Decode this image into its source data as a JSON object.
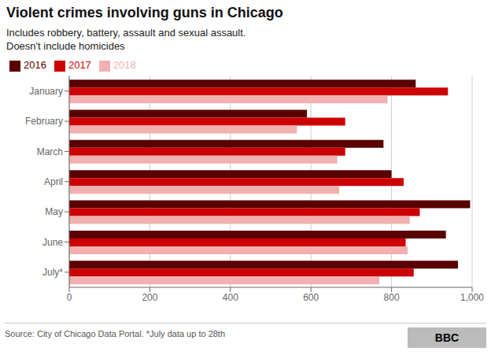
{
  "chart_data": {
    "type": "bar",
    "orientation": "horizontal",
    "title": "Violent crimes involving guns in Chicago",
    "subtitle": "Includes robbery, battery, assault and sexual assault.\nDoesn't include homicides",
    "categories": [
      "January",
      "February",
      "March",
      "April",
      "May",
      "June",
      "July*"
    ],
    "series": [
      {
        "name": "2016",
        "color": "#5a0000",
        "values": [
          860,
          590,
          780,
          800,
          995,
          935,
          965
        ]
      },
      {
        "name": "2017",
        "color": "#cc0000",
        "values": [
          940,
          685,
          685,
          830,
          870,
          835,
          855
        ]
      },
      {
        "name": "2018",
        "color": "#f2b0b0",
        "values": [
          790,
          565,
          665,
          670,
          845,
          840,
          770
        ]
      }
    ],
    "xlim": [
      0,
      1000
    ],
    "xticks": [
      0,
      200,
      400,
      600,
      800,
      {
        "value": 1000,
        "label": "1,000"
      }
    ],
    "grid": true,
    "legend": "upper left",
    "annotations": [
      "Source: City of Chicago Data Portal. *July data up to 28th",
      "BBC"
    ]
  }
}
